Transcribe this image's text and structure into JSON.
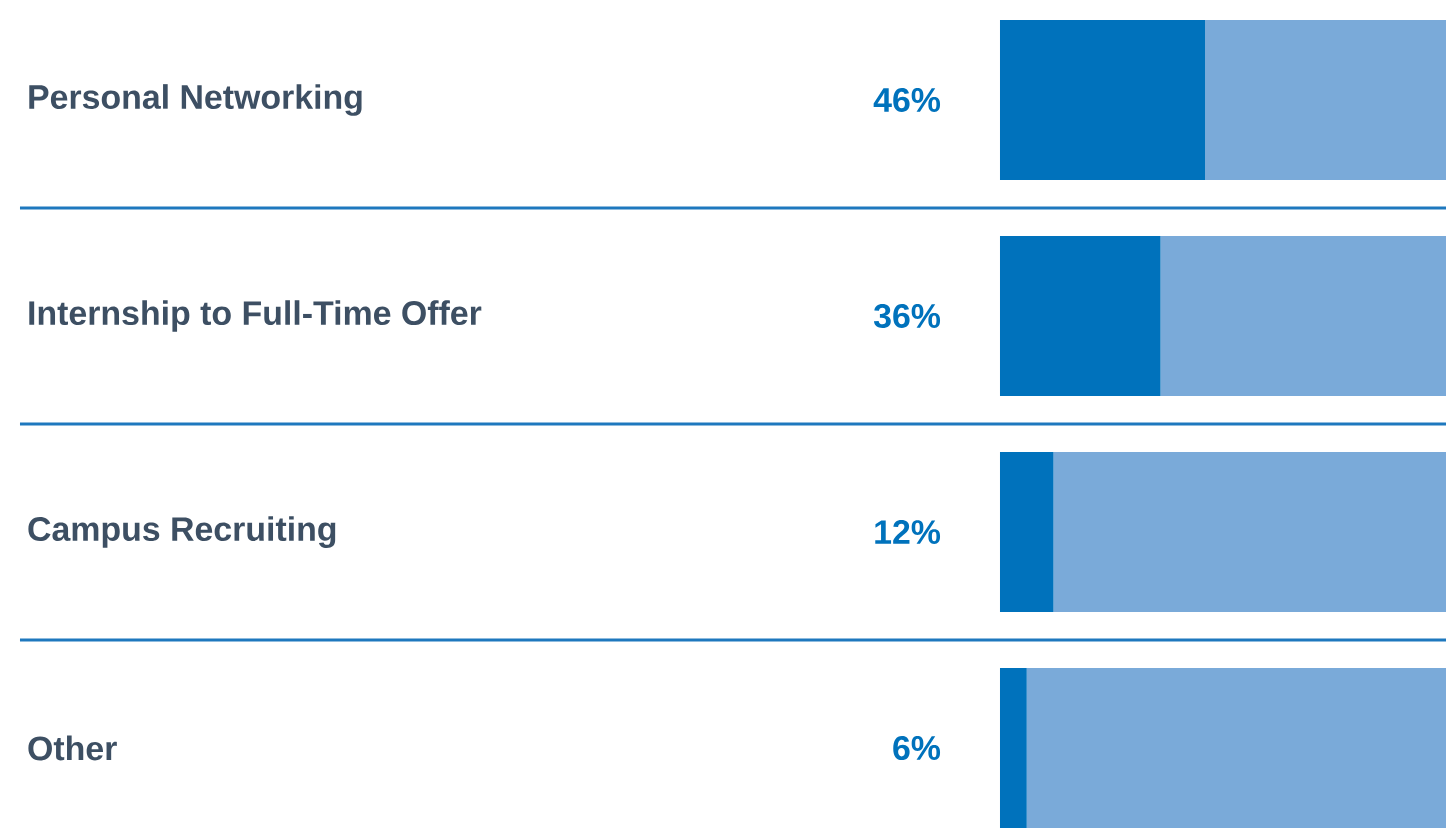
{
  "chart_data": {
    "type": "bar",
    "orientation": "horizontal",
    "stacked": true,
    "categories": [
      "Personal Networking",
      "Internship to Full-Time Offer",
      "Campus Recruiting",
      "Other"
    ],
    "series": [
      {
        "color": "#0072bc",
        "values": [
          46,
          36,
          12,
          6
        ],
        "value_labels": [
          "46%",
          "36%",
          "12%",
          "6%"
        ]
      },
      {
        "color": "#7aaad9",
        "values": [
          54,
          64,
          88,
          94
        ]
      }
    ],
    "tick_labels": "y"
  }
}
